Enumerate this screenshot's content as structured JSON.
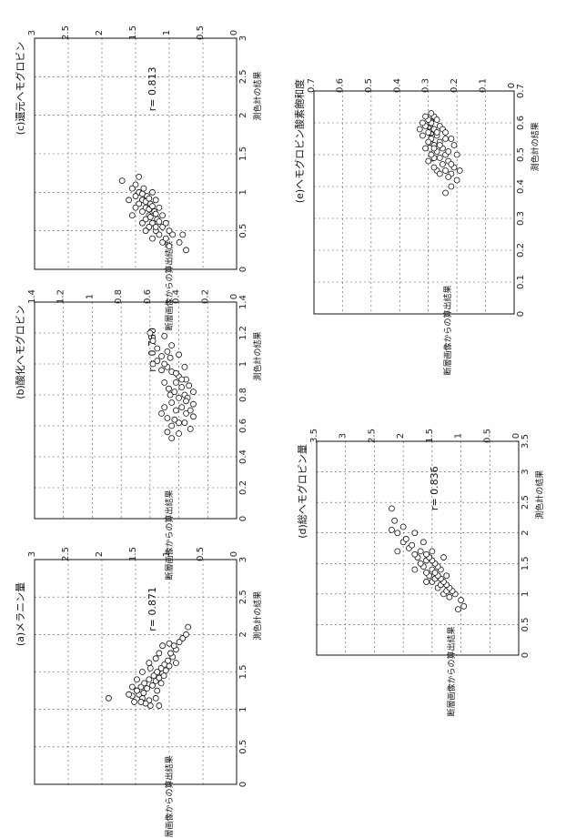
{
  "chart_data": [
    {
      "type": "scatter",
      "title": "(a)メラニン量",
      "xlabel": "測色計の結果",
      "ylabel": "断層画像からの算出結果",
      "xlim": [
        0,
        3
      ],
      "ylim": [
        0,
        3
      ],
      "xticks": [
        "0",
        "0.5",
        "1",
        "1.5",
        "2",
        "2.5",
        "3"
      ],
      "yticks": [
        "0",
        "0.5",
        "1",
        "1.5",
        "2",
        "2.5",
        "3"
      ],
      "annotation": "r= 0.871",
      "grid": true,
      "points": [
        [
          1.05,
          1.28
        ],
        [
          1.12,
          1.3
        ],
        [
          1.08,
          1.35
        ],
        [
          1.15,
          1.4
        ],
        [
          1.2,
          1.45
        ],
        [
          1.1,
          1.52
        ],
        [
          1.18,
          1.55
        ],
        [
          1.25,
          1.48
        ],
        [
          1.22,
          1.38
        ],
        [
          1.3,
          1.42
        ],
        [
          1.28,
          1.33
        ],
        [
          1.35,
          1.37
        ],
        [
          1.32,
          1.25
        ],
        [
          1.4,
          1.3
        ],
        [
          1.38,
          1.2
        ],
        [
          1.45,
          1.23
        ],
        [
          1.42,
          1.15
        ],
        [
          1.5,
          1.18
        ],
        [
          1.48,
          1.1
        ],
        [
          1.55,
          1.12
        ],
        [
          1.52,
          1.05
        ],
        [
          1.6,
          1.07
        ],
        [
          1.58,
          1.0
        ],
        [
          1.65,
          1.02
        ],
        [
          1.7,
          0.95
        ],
        [
          1.75,
          0.98
        ],
        [
          1.8,
          0.9
        ],
        [
          1.85,
          0.93
        ],
        [
          1.9,
          0.85
        ],
        [
          1.95,
          0.8
        ],
        [
          2.0,
          0.75
        ],
        [
          2.1,
          0.72
        ],
        [
          1.15,
          1.2
        ],
        [
          1.25,
          1.18
        ],
        [
          1.35,
          1.12
        ],
        [
          1.45,
          1.08
        ],
        [
          1.3,
          1.55
        ],
        [
          1.4,
          1.48
        ],
        [
          1.5,
          1.4
        ],
        [
          1.2,
          1.6
        ],
        [
          1.1,
          1.42
        ],
        [
          1.62,
          1.3
        ],
        [
          1.55,
          1.28
        ],
        [
          1.68,
          1.2
        ],
        [
          1.75,
          1.15
        ],
        [
          1.85,
          1.1
        ],
        [
          1.88,
          1.0
        ],
        [
          1.15,
          1.9
        ],
        [
          1.05,
          1.15
        ],
        [
          1.62,
          0.9
        ]
      ]
    },
    {
      "type": "scatter",
      "title": "(b)酸化ヘモグロビン",
      "xlabel": "測色計の結果",
      "ylabel": "断層画像からの算出結果",
      "xlim": [
        0,
        1.4
      ],
      "ylim": [
        0,
        1.4
      ],
      "xticks": [
        "0",
        "0.2",
        "0.4",
        "0.6",
        "0.8",
        "1",
        "1.2",
        "1.4"
      ],
      "yticks": [
        "0",
        "0.2",
        "0.4",
        "0.6",
        "0.8",
        "1",
        "1.2",
        "1.4"
      ],
      "annotation": "r= 0.780",
      "grid": true,
      "points": [
        [
          0.6,
          0.45
        ],
        [
          0.62,
          0.4
        ],
        [
          0.65,
          0.48
        ],
        [
          0.68,
          0.35
        ],
        [
          0.7,
          0.42
        ],
        [
          0.72,
          0.38
        ],
        [
          0.75,
          0.45
        ],
        [
          0.78,
          0.4
        ],
        [
          0.8,
          0.36
        ],
        [
          0.82,
          0.43
        ],
        [
          0.85,
          0.38
        ],
        [
          0.88,
          0.42
        ],
        [
          0.9,
          0.35
        ],
        [
          0.92,
          0.4
        ],
        [
          0.95,
          0.45
        ],
        [
          0.98,
          0.48
        ],
        [
          1.0,
          0.5
        ],
        [
          1.02,
          0.55
        ],
        [
          1.05,
          0.52
        ],
        [
          1.08,
          0.48
        ],
        [
          1.1,
          0.55
        ],
        [
          1.12,
          0.45
        ],
        [
          1.15,
          0.58
        ],
        [
          1.18,
          0.5
        ],
        [
          0.55,
          0.4
        ],
        [
          0.58,
          0.32
        ],
        [
          0.62,
          0.36
        ],
        [
          0.66,
          0.3
        ],
        [
          0.7,
          0.32
        ],
        [
          0.74,
          0.3
        ],
        [
          0.78,
          0.34
        ],
        [
          0.82,
          0.3
        ],
        [
          0.86,
          0.33
        ],
        [
          0.9,
          0.38
        ],
        [
          0.94,
          0.42
        ],
        [
          0.96,
          0.52
        ],
        [
          1.0,
          0.58
        ],
        [
          1.04,
          0.46
        ],
        [
          0.52,
          0.45
        ],
        [
          0.56,
          0.48
        ],
        [
          0.64,
          0.43
        ],
        [
          0.72,
          0.5
        ],
        [
          0.76,
          0.35
        ],
        [
          0.84,
          0.47
        ],
        [
          0.88,
          0.5
        ],
        [
          1.2,
          0.6
        ],
        [
          1.06,
          0.4
        ],
        [
          0.98,
          0.36
        ],
        [
          0.68,
          0.52
        ],
        [
          0.8,
          0.46
        ]
      ]
    },
    {
      "type": "scatter",
      "title": "(c)還元ヘモグロビン",
      "xlabel": "測色計の結果",
      "ylabel": "断層画像からの算出結果",
      "xlim": [
        0,
        3
      ],
      "ylim": [
        0,
        3
      ],
      "xticks": [
        "0",
        "0.5",
        "1",
        "1.5",
        "2",
        "2.5",
        "3"
      ],
      "yticks": [
        "0",
        "0.5",
        "1",
        "1.5",
        "2",
        "2.5",
        "3"
      ],
      "annotation": "r= 0.813",
      "grid": true,
      "points": [
        [
          0.3,
          1.0
        ],
        [
          0.35,
          1.1
        ],
        [
          0.4,
          1.05
        ],
        [
          0.45,
          1.15
        ],
        [
          0.5,
          1.2
        ],
        [
          0.55,
          1.1
        ],
        [
          0.6,
          1.25
        ],
        [
          0.65,
          1.18
        ],
        [
          0.7,
          1.3
        ],
        [
          0.75,
          1.22
        ],
        [
          0.8,
          1.35
        ],
        [
          0.85,
          1.28
        ],
        [
          0.9,
          1.4
        ],
        [
          0.95,
          1.33
        ],
        [
          1.0,
          1.45
        ],
        [
          1.05,
          1.38
        ],
        [
          1.1,
          1.5
        ],
        [
          0.5,
          1.0
        ],
        [
          0.55,
          1.3
        ],
        [
          0.6,
          1.05
        ],
        [
          0.65,
          1.35
        ],
        [
          0.7,
          1.1
        ],
        [
          0.75,
          1.4
        ],
        [
          0.8,
          1.15
        ],
        [
          0.85,
          1.45
        ],
        [
          0.9,
          1.2
        ],
        [
          0.95,
          1.5
        ],
        [
          1.0,
          1.25
        ],
        [
          1.05,
          1.55
        ],
        [
          0.4,
          1.25
        ],
        [
          0.45,
          0.95
        ],
        [
          0.55,
          1.2
        ],
        [
          0.62,
          1.15
        ],
        [
          0.68,
          1.28
        ],
        [
          0.72,
          1.2
        ],
        [
          0.78,
          1.3
        ],
        [
          0.82,
          1.25
        ],
        [
          0.88,
          1.35
        ],
        [
          0.92,
          1.3
        ],
        [
          0.98,
          1.4
        ],
        [
          0.35,
          0.85
        ],
        [
          0.25,
          0.75
        ],
        [
          0.45,
          0.8
        ],
        [
          0.7,
          1.55
        ],
        [
          0.9,
          1.6
        ],
        [
          1.15,
          1.7
        ],
        [
          0.8,
          1.5
        ],
        [
          0.6,
          1.4
        ],
        [
          0.5,
          1.35
        ],
        [
          1.2,
          1.45
        ]
      ]
    },
    {
      "type": "scatter",
      "title": "(d)総ヘモグロビン量",
      "xlabel": "測色計の結果",
      "ylabel": "断層画像からの算出結果",
      "xlim": [
        0,
        3.5
      ],
      "ylim": [
        0,
        3.5
      ],
      "xticks": [
        "0",
        "0.5",
        "1",
        "1.5",
        "2",
        "2.5",
        "3",
        "3.5"
      ],
      "yticks": [
        "0",
        "0.5",
        "1",
        "1.5",
        "2",
        "2.5",
        "3",
        "3.5"
      ],
      "annotation": "r= 0.836",
      "grid": true,
      "points": [
        [
          0.95,
          1.2
        ],
        [
          1.0,
          1.3
        ],
        [
          1.05,
          1.25
        ],
        [
          1.1,
          1.4
        ],
        [
          1.15,
          1.35
        ],
        [
          1.2,
          1.5
        ],
        [
          1.25,
          1.45
        ],
        [
          1.3,
          1.55
        ],
        [
          1.35,
          1.6
        ],
        [
          1.4,
          1.5
        ],
        [
          1.45,
          1.65
        ],
        [
          1.5,
          1.7
        ],
        [
          1.55,
          1.6
        ],
        [
          1.6,
          1.75
        ],
        [
          1.65,
          1.8
        ],
        [
          1.7,
          1.7
        ],
        [
          1.75,
          1.9
        ],
        [
          1.8,
          1.85
        ],
        [
          1.85,
          2.0
        ],
        [
          1.9,
          1.95
        ],
        [
          2.0,
          2.1
        ],
        [
          2.05,
          2.2
        ],
        [
          2.1,
          2.0
        ],
        [
          2.2,
          2.15
        ],
        [
          1.0,
          1.1
        ],
        [
          1.05,
          1.15
        ],
        [
          1.1,
          1.2
        ],
        [
          1.15,
          1.25
        ],
        [
          1.2,
          1.3
        ],
        [
          1.25,
          1.35
        ],
        [
          1.3,
          1.4
        ],
        [
          1.35,
          1.45
        ],
        [
          1.4,
          1.35
        ],
        [
          1.45,
          1.4
        ],
        [
          1.5,
          1.45
        ],
        [
          1.55,
          1.5
        ],
        [
          1.6,
          1.55
        ],
        [
          1.65,
          1.6
        ],
        [
          1.7,
          1.5
        ],
        [
          0.8,
          0.95
        ],
        [
          0.75,
          1.05
        ],
        [
          0.9,
          1.0
        ],
        [
          1.2,
          1.6
        ],
        [
          1.4,
          1.8
        ],
        [
          1.7,
          2.1
        ],
        [
          2.4,
          2.2
        ],
        [
          2.0,
          1.8
        ],
        [
          1.85,
          1.65
        ],
        [
          1.3,
          1.25
        ],
        [
          1.6,
          1.3
        ]
      ]
    },
    {
      "type": "scatter",
      "title": "(e)ヘモグロビン酸素飽和度",
      "xlabel": "測色計の結果",
      "ylabel": "断層画像からの算出結果",
      "xlim": [
        0,
        0.7
      ],
      "ylim": [
        0,
        0.7
      ],
      "xticks": [
        "0",
        "0.1",
        "0.2",
        "0.3",
        "0.4",
        "0.5",
        "0.6",
        "0.7"
      ],
      "yticks": [
        "0",
        "0.1",
        "0.2",
        "0.3",
        "0.4",
        "0.5",
        "0.6",
        "0.7"
      ],
      "annotation": "r= 0.698",
      "grid": true,
      "points": [
        [
          0.42,
          0.2
        ],
        [
          0.44,
          0.22
        ],
        [
          0.45,
          0.24
        ],
        [
          0.46,
          0.21
        ],
        [
          0.47,
          0.25
        ],
        [
          0.48,
          0.23
        ],
        [
          0.49,
          0.26
        ],
        [
          0.5,
          0.24
        ],
        [
          0.51,
          0.27
        ],
        [
          0.52,
          0.25
        ],
        [
          0.53,
          0.28
        ],
        [
          0.54,
          0.26
        ],
        [
          0.55,
          0.29
        ],
        [
          0.56,
          0.27
        ],
        [
          0.57,
          0.3
        ],
        [
          0.58,
          0.28
        ],
        [
          0.59,
          0.31
        ],
        [
          0.6,
          0.29
        ],
        [
          0.61,
          0.3
        ],
        [
          0.62,
          0.28
        ],
        [
          0.43,
          0.23
        ],
        [
          0.45,
          0.27
        ],
        [
          0.47,
          0.22
        ],
        [
          0.49,
          0.28
        ],
        [
          0.51,
          0.23
        ],
        [
          0.53,
          0.26
        ],
        [
          0.55,
          0.24
        ],
        [
          0.57,
          0.27
        ],
        [
          0.59,
          0.26
        ],
        [
          0.48,
          0.3
        ],
        [
          0.52,
          0.31
        ],
        [
          0.56,
          0.32
        ],
        [
          0.6,
          0.32
        ],
        [
          0.46,
          0.28
        ],
        [
          0.5,
          0.29
        ],
        [
          0.54,
          0.3
        ],
        [
          0.58,
          0.25
        ],
        [
          0.62,
          0.31
        ],
        [
          0.44,
          0.26
        ],
        [
          0.4,
          0.22
        ],
        [
          0.38,
          0.24
        ],
        [
          0.53,
          0.21
        ],
        [
          0.57,
          0.24
        ],
        [
          0.61,
          0.27
        ],
        [
          0.5,
          0.2
        ],
        [
          0.45,
          0.19
        ],
        [
          0.55,
          0.22
        ],
        [
          0.63,
          0.29
        ],
        [
          0.58,
          0.33
        ],
        [
          0.52,
          0.28
        ]
      ]
    }
  ]
}
